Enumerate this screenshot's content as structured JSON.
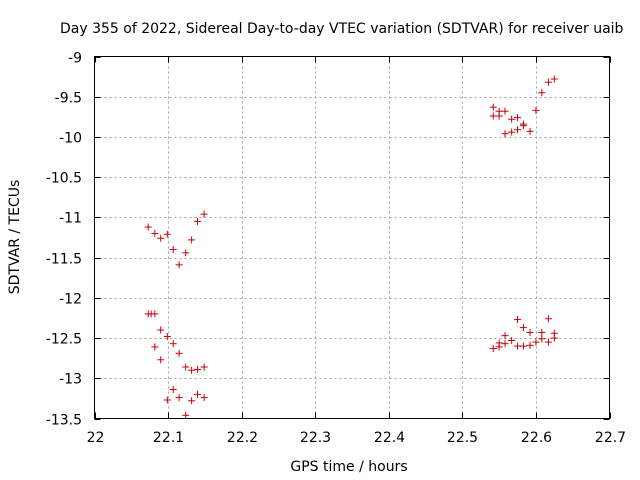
{
  "chart_data": {
    "type": "scatter",
    "title": "Day 355 of 2022, Sidereal Day-to-day VTEC variation (SDTVAR) for receiver uaib",
    "xlabel": "GPS time / hours",
    "ylabel": "SDTVAR / TECUs",
    "xlim": [
      22,
      22.7
    ],
    "ylim": [
      -13.5,
      -9
    ],
    "xticks": [
      "22",
      "22.1",
      "22.2",
      "22.3",
      "22.4",
      "22.5",
      "22.6",
      "22.7"
    ],
    "yticks": [
      "-9",
      "-9.5",
      "-10",
      "-10.5",
      "-11",
      "-11.5",
      "-12",
      "-12.5",
      "-13",
      "-13.5"
    ],
    "grid": true,
    "marker": "+",
    "color": "#c8000a",
    "series": [
      {
        "name": "SDTVAR",
        "x": [
          22.073,
          22.082,
          22.09,
          22.099,
          22.107,
          22.115,
          22.124,
          22.132,
          22.14,
          22.149,
          22.073,
          22.077,
          22.082,
          22.09,
          22.099,
          22.107,
          22.115,
          22.124,
          22.132,
          22.14,
          22.149,
          22.082,
          22.09,
          22.099,
          22.107,
          22.115,
          22.124,
          22.132,
          22.14,
          22.149,
          22.542,
          22.542,
          22.55,
          22.55,
          22.558,
          22.558,
          22.567,
          22.567,
          22.575,
          22.575,
          22.583,
          22.583,
          22.592,
          22.6,
          22.608,
          22.617,
          22.625,
          22.542,
          22.55,
          22.55,
          22.558,
          22.558,
          22.567,
          22.575,
          22.575,
          22.583,
          22.583,
          22.592,
          22.592,
          22.6,
          22.608,
          22.608,
          22.617,
          22.617,
          22.625,
          22.625
        ],
        "y": [
          -11.12,
          -11.2,
          -11.26,
          -11.21,
          -11.4,
          -11.59,
          -11.44,
          -11.28,
          -11.05,
          -10.96,
          -12.2,
          -12.2,
          -12.2,
          -12.4,
          -12.48,
          -12.57,
          -12.69,
          -12.86,
          -12.9,
          -12.89,
          -12.86,
          -12.61,
          -12.77,
          -13.27,
          -13.14,
          -13.24,
          -13.46,
          -13.28,
          -13.2,
          -13.24,
          -9.63,
          -9.74,
          -9.68,
          -9.74,
          -9.68,
          -9.96,
          -9.78,
          -9.94,
          -9.76,
          -9.91,
          -9.84,
          -9.86,
          -9.93,
          -9.67,
          -9.45,
          -9.32,
          -9.28,
          -12.63,
          -12.61,
          -12.56,
          -12.57,
          -12.47,
          -12.53,
          -12.27,
          -12.6,
          -12.37,
          -12.6,
          -12.43,
          -12.59,
          -12.55,
          -12.51,
          -12.43,
          -12.26,
          -12.55,
          -12.5,
          -12.44
        ]
      }
    ]
  }
}
